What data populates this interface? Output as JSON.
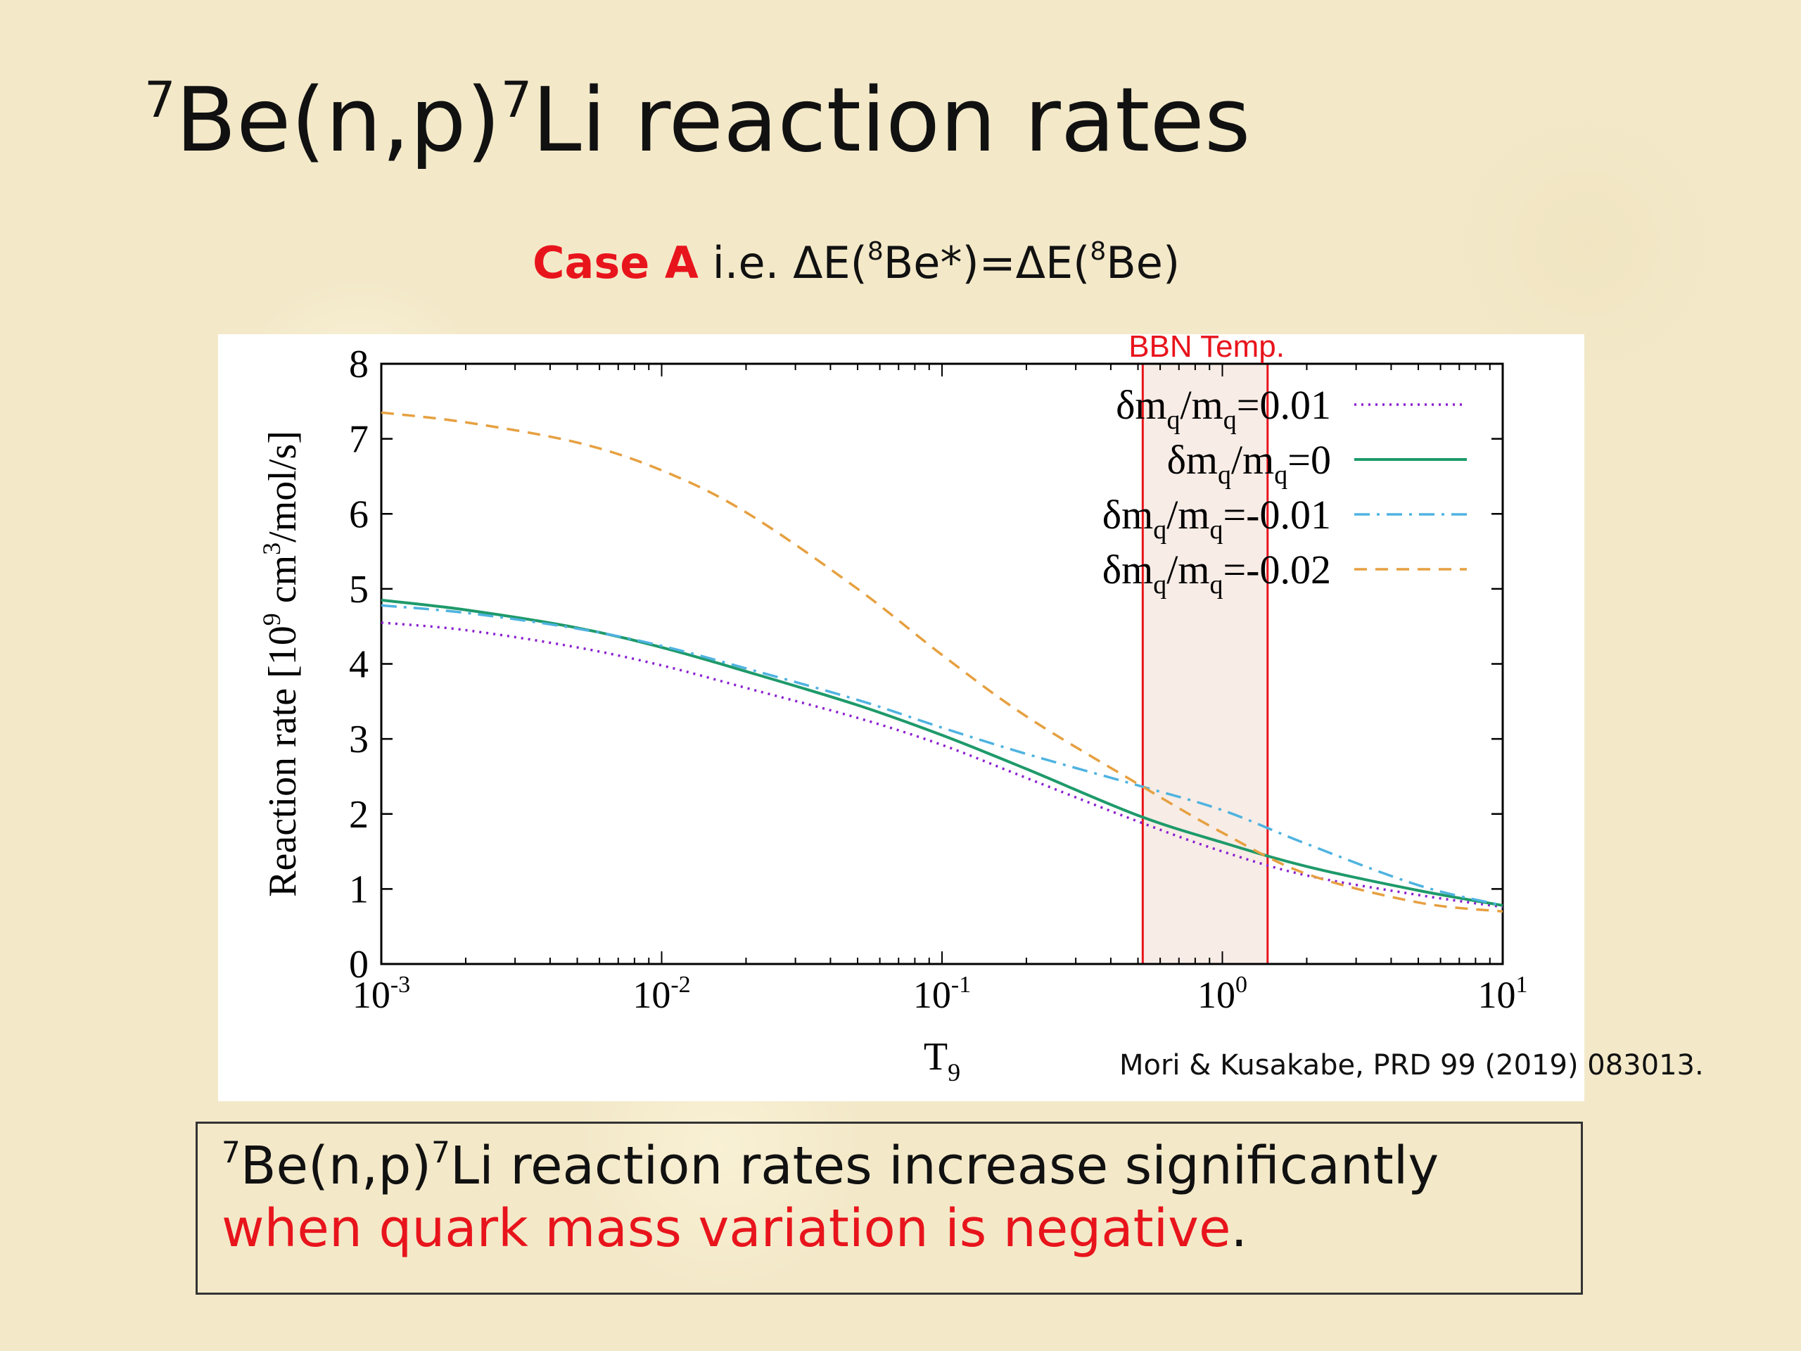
{
  "slide": {
    "title": {
      "sup1": "7",
      "part1": "Be(n,p)",
      "sup2": "7",
      "part2": "Li reaction rates"
    },
    "subtitle": {
      "highlight": "Case A",
      "text1": " i.e. ΔE(",
      "sup1": "8",
      "text2": "Be*)=ΔE(",
      "sup2": "8",
      "text3": "Be)"
    },
    "citation": "Mori & Kusakabe, PRD 99 (2019) 083013.",
    "summary": {
      "sup1": "7",
      "part1": "Be(n,p)",
      "sup2": "7",
      "part2": "Li reaction rates increase significantly",
      "red_text": "when quark mass variation is negative",
      "end": "."
    }
  },
  "chart_data": {
    "type": "line",
    "title": "",
    "xlabel": "T",
    "xlabel_sub": "9",
    "ylabel": "Reaction rate [10",
    "ylabel_sup": "9",
    "ylabel_mid": " cm",
    "ylabel_sup2": "3",
    "ylabel_end": "/mol/s]",
    "xscale": "log",
    "xlim": [
      0.001,
      10
    ],
    "ylim": [
      0,
      8
    ],
    "x_ticks": [
      {
        "base": "10",
        "exp": "-3",
        "value": 0.001
      },
      {
        "base": "10",
        "exp": "-2",
        "value": 0.01
      },
      {
        "base": "10",
        "exp": "-1",
        "value": 0.1
      },
      {
        "base": "10",
        "exp": "0",
        "value": 1
      },
      {
        "base": "10",
        "exp": "1",
        "value": 10
      }
    ],
    "y_ticks": [
      "0",
      "1",
      "2",
      "3",
      "4",
      "5",
      "6",
      "7",
      "8"
    ],
    "band": {
      "label": "BBN Temp.",
      "x_range": [
        0.52,
        1.45
      ],
      "color": "#e8141c"
    },
    "legend_position": "top-right",
    "series": [
      {
        "label": "δm_q/m_q=0.01",
        "l_pre": "δm",
        "l_sub1": "q",
        "l_mid": "/m",
        "l_sub2": "q",
        "l_post": "=0.01",
        "color": "#8b1fd0",
        "style": "dotted",
        "x": [
          0.001,
          0.002,
          0.005,
          0.01,
          0.02,
          0.05,
          0.1,
          0.2,
          0.5,
          1,
          2,
          5,
          10
        ],
        "y": [
          4.55,
          4.45,
          4.22,
          3.98,
          3.68,
          3.28,
          2.92,
          2.48,
          1.9,
          1.5,
          1.18,
          0.92,
          0.76
        ]
      },
      {
        "label": "δm_q/m_q=0",
        "l_pre": "δm",
        "l_sub1": "q",
        "l_mid": "/m",
        "l_sub2": "q",
        "l_post": "=0",
        "color": "#1e9a6a",
        "style": "solid",
        "x": [
          0.001,
          0.002,
          0.005,
          0.01,
          0.02,
          0.05,
          0.1,
          0.2,
          0.5,
          1,
          2,
          5,
          10
        ],
        "y": [
          4.85,
          4.72,
          4.48,
          4.22,
          3.9,
          3.45,
          3.05,
          2.6,
          1.98,
          1.62,
          1.3,
          0.98,
          0.78
        ]
      },
      {
        "label": "δm_q/m_q=-0.01",
        "l_pre": "δm",
        "l_sub1": "q",
        "l_mid": "/m",
        "l_sub2": "q",
        "l_post": "=-0.01",
        "color": "#4fb3e0",
        "style": "dashdot",
        "x": [
          0.001,
          0.002,
          0.005,
          0.01,
          0.02,
          0.05,
          0.1,
          0.2,
          0.5,
          1,
          2,
          5,
          10
        ],
        "y": [
          4.78,
          4.68,
          4.47,
          4.24,
          3.94,
          3.52,
          3.15,
          2.8,
          2.38,
          2.05,
          1.6,
          1.05,
          0.78
        ]
      },
      {
        "label": "δm_q/m_q=-0.02",
        "l_pre": "δm",
        "l_sub1": "q",
        "l_mid": "/m",
        "l_sub2": "q",
        "l_post": "=-0.02",
        "color": "#e6a040",
        "style": "dashed",
        "x": [
          0.001,
          0.002,
          0.005,
          0.01,
          0.02,
          0.05,
          0.1,
          0.2,
          0.5,
          1,
          2,
          5,
          10
        ],
        "y": [
          7.35,
          7.22,
          6.95,
          6.58,
          6.02,
          5.0,
          4.12,
          3.3,
          2.4,
          1.75,
          1.2,
          0.82,
          0.7
        ]
      }
    ]
  }
}
